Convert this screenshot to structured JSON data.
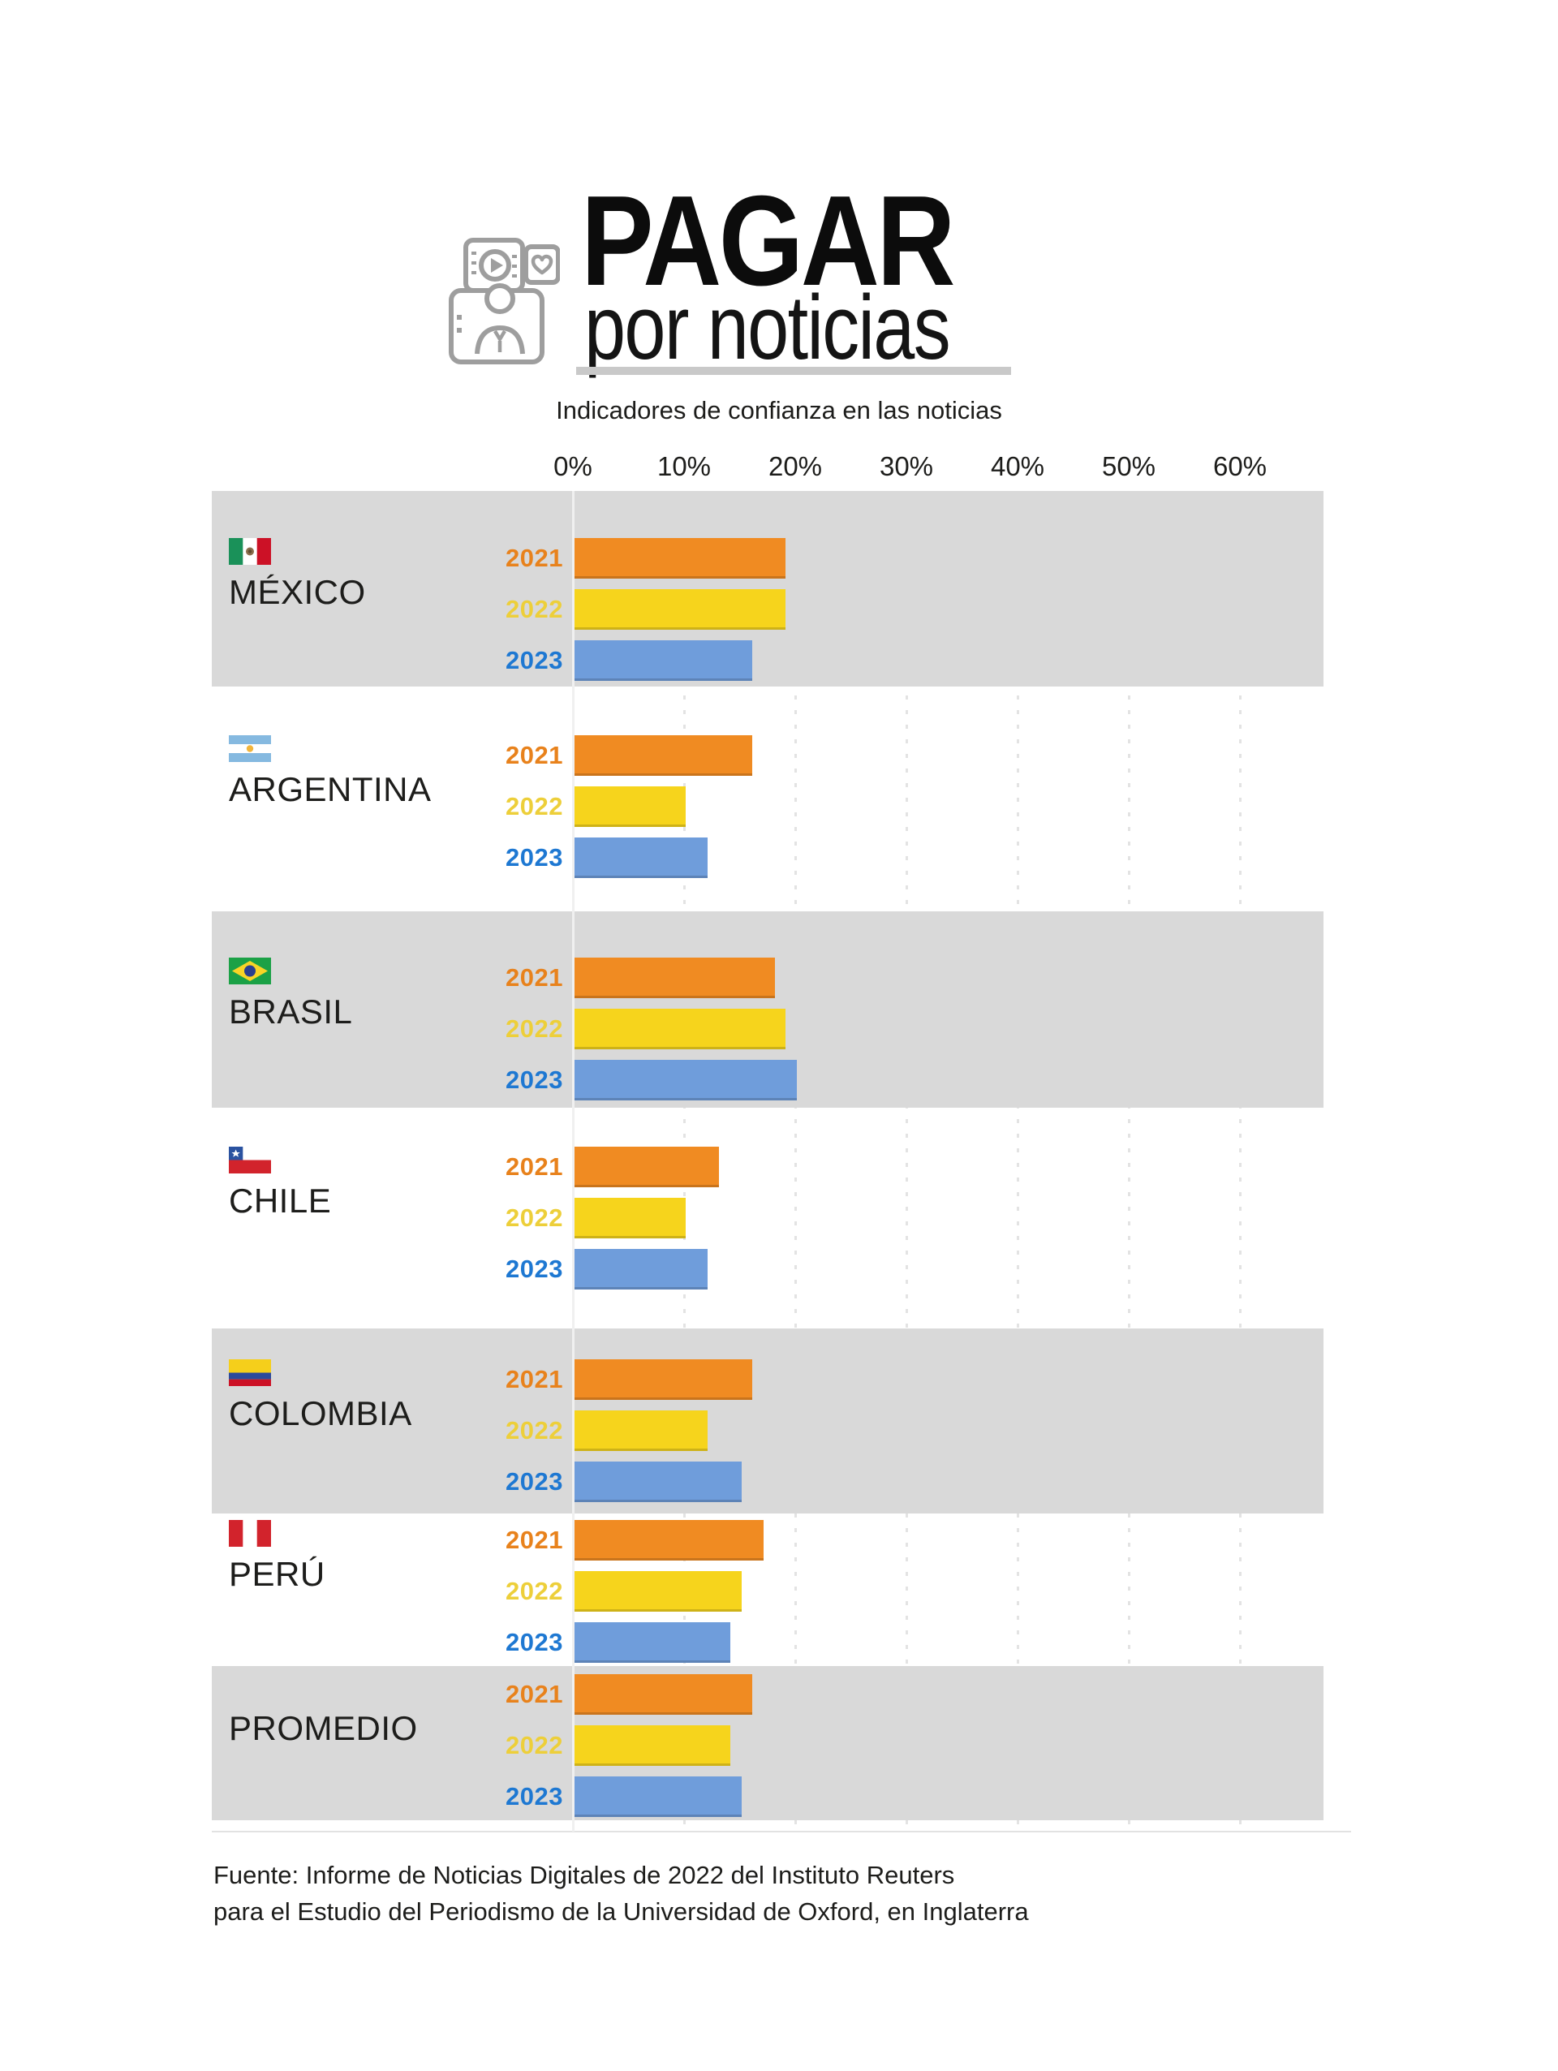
{
  "header": {
    "title": "PAGAR",
    "title_line2": "por noticias",
    "tagline": "Indicadores de confianza en las noticias",
    "icon": "media-subscription-icon"
  },
  "axis": {
    "ticks": [
      "0%",
      "10%",
      "20%",
      "30%",
      "40%",
      "50%",
      "60%"
    ]
  },
  "chart_data": {
    "type": "bar",
    "orientation": "horizontal",
    "title": "PAGAR por noticias",
    "subtitle": "Indicadores de confianza en las noticias",
    "unit": "%",
    "xlim": [
      0,
      60
    ],
    "x_ticks": [
      "0%",
      "10%",
      "20%",
      "30%",
      "40%",
      "50%",
      "60%"
    ],
    "grid": "dotted-vertical-on-white",
    "legend_position": "inline-year-labels",
    "categories": [
      "MÉXICO",
      "ARGENTINA",
      "BRASIL",
      "CHILE",
      "COLOMBIA",
      "PERÚ",
      "PROMEDIO"
    ],
    "flags": [
      "mexico-flag",
      "argentina-flag",
      "brazil-flag",
      "chile-flag",
      "colombia-flag",
      "peru-flag",
      null
    ],
    "series": [
      {
        "name": "2021",
        "color": "#F08B22",
        "label_color": "#E8821C",
        "values": [
          19,
          16,
          18,
          13,
          16,
          17,
          16
        ]
      },
      {
        "name": "2022",
        "color": "#F6D41C",
        "label_color": "#EDCF3A",
        "values": [
          19,
          10,
          19,
          10,
          12,
          15,
          14
        ]
      },
      {
        "name": "2023",
        "color": "#6F9DDB",
        "label_color": "#1E78D2",
        "values": [
          16,
          12,
          20,
          12,
          15,
          14,
          15
        ]
      }
    ]
  },
  "colors": {
    "band_gray": "#d9d9d9",
    "bar_orange": "#F08B22",
    "bar_yellow": "#F6D41C",
    "bar_blue": "#6F9DDB",
    "year_orange": "#E8821C",
    "year_yellow": "#EDCF3A",
    "year_blue": "#1E78D2",
    "text_dark": "#1d1d1b",
    "icon_gray": "#9e9e9e"
  },
  "footer": {
    "line1": "Fuente: Informe de Noticias Digitales de 2022 del Instituto Reuters",
    "line2": "para el Estudio del Periodismo de la Universidad de Oxford, en Inglaterra"
  }
}
